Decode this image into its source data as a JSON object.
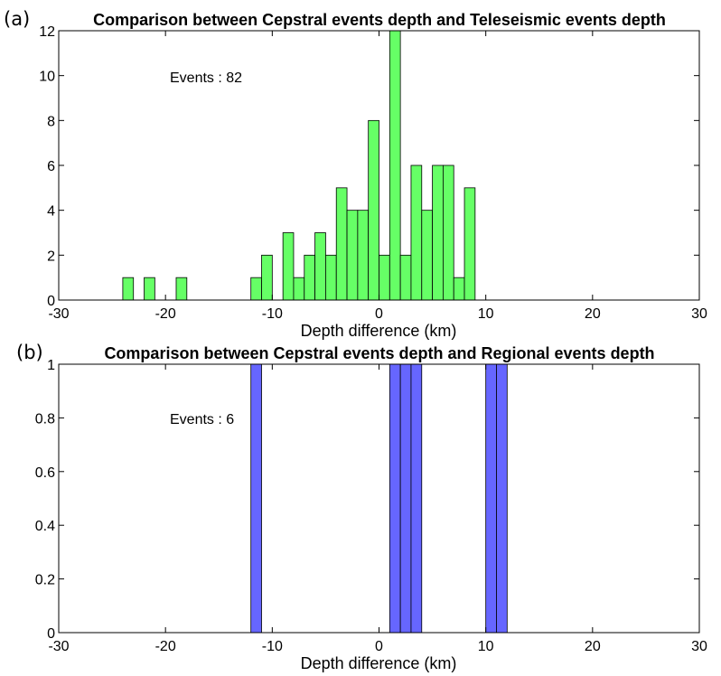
{
  "chart_data": [
    {
      "panel_label": "(a)",
      "type": "bar",
      "title": "Comparison between Cepstral events depth and Teleseismic events depth",
      "xlabel": "Depth difference (km)",
      "ylabel": "",
      "xlim": [
        -30,
        30
      ],
      "ylim": [
        0,
        12
      ],
      "xticks": [
        -30,
        -20,
        -10,
        0,
        10,
        20,
        30
      ],
      "yticks": [
        0,
        2,
        4,
        6,
        8,
        10,
        12
      ],
      "grid": false,
      "bin_width": 1,
      "color": "#66ff66",
      "annotation": "Events : 82",
      "bin_left_edges": [
        -24,
        -22,
        -19,
        -12,
        -11,
        -9,
        -8,
        -7,
        -6,
        -5,
        -4,
        -3,
        -2,
        -1,
        0,
        1,
        2,
        3,
        4,
        5,
        6,
        7,
        8
      ],
      "values": [
        1,
        1,
        1,
        1,
        2,
        3,
        1,
        2,
        3,
        2,
        5,
        4,
        4,
        8,
        2,
        12,
        2,
        6,
        4,
        6,
        6,
        1,
        5
      ]
    },
    {
      "panel_label": "(b)",
      "type": "bar",
      "title": "Comparison between Cepstral events depth and Regional events depth",
      "xlabel": "Depth difference (km)",
      "ylabel": "",
      "xlim": [
        -30,
        30
      ],
      "ylim": [
        0,
        1
      ],
      "xticks": [
        -30,
        -20,
        -10,
        0,
        10,
        20,
        30
      ],
      "yticks": [
        "0",
        "0.2",
        "0.4",
        "0.6",
        "0.8",
        "1"
      ],
      "grid": false,
      "bin_width": 1,
      "color": "#6666ff",
      "annotation": "Events : 6",
      "bin_left_edges": [
        -12,
        1,
        2,
        3,
        10,
        11
      ],
      "values": [
        1,
        1,
        1,
        1,
        1,
        1
      ]
    }
  ]
}
